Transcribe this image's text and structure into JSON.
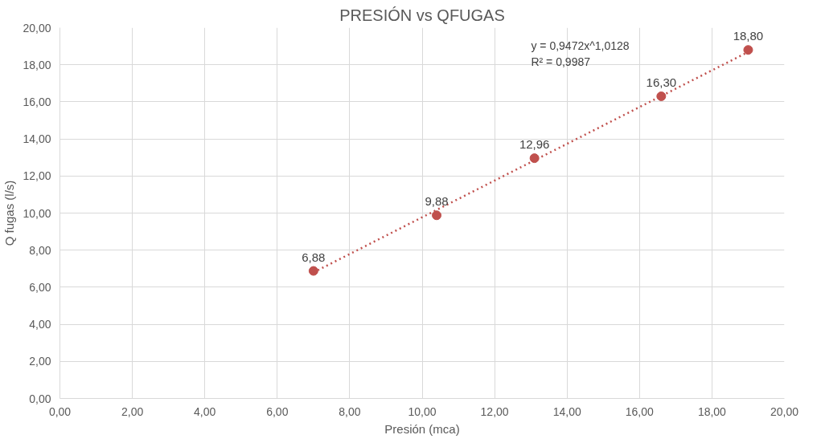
{
  "chart_data": {
    "type": "scatter",
    "title": "PRESIÓN vs QFUGAS",
    "xlabel": "Presión (mca)",
    "ylabel": "Q fugas (l/s)",
    "x": [
      7.0,
      10.4,
      13.1,
      16.6,
      19.0
    ],
    "series": [
      {
        "color": "#c0504d",
        "values": [
          6.88,
          9.88,
          12.96,
          16.3,
          18.8
        ],
        "data_labels": true,
        "value_labels": [
          "6,88",
          "9,88",
          "12,96",
          "16,30",
          "18,80"
        ]
      },
      {
        "type": "line",
        "color": "#c0504d",
        "x": [
          7.0,
          19.0
        ],
        "values": [
          6.8,
          18.69
        ],
        "line_style": "dotted",
        "marker": "none"
      }
    ],
    "annotations": [
      "y = 0,9472x^1,0128",
      "R² = 0,9987"
    ],
    "xlim": [
      0,
      20
    ],
    "ylim": [
      0,
      20
    ],
    "xticks": [
      {
        "value": 0,
        "label": "0,00"
      },
      {
        "value": 2,
        "label": "2,00"
      },
      {
        "value": 4,
        "label": "4,00"
      },
      {
        "value": 6,
        "label": "6,00"
      },
      {
        "value": 8,
        "label": "8,00"
      },
      {
        "value": 10,
        "label": "10,00"
      },
      {
        "value": 12,
        "label": "12,00"
      },
      {
        "value": 14,
        "label": "14,00"
      },
      {
        "value": 16,
        "label": "16,00"
      },
      {
        "value": 18,
        "label": "18,00"
      },
      {
        "value": 20,
        "label": "20,00"
      }
    ],
    "yticks": [
      {
        "value": 0,
        "label": "0,00"
      },
      {
        "value": 2,
        "label": "2,00"
      },
      {
        "value": 4,
        "label": "4,00"
      },
      {
        "value": 6,
        "label": "6,00"
      },
      {
        "value": 8,
        "label": "8,00"
      },
      {
        "value": 10,
        "label": "10,00"
      },
      {
        "value": 12,
        "label": "12,00"
      },
      {
        "value": 14,
        "label": "14,00"
      },
      {
        "value": 16,
        "label": "16,00"
      },
      {
        "value": 18,
        "label": "18,00"
      },
      {
        "value": 20,
        "label": "20,00"
      }
    ],
    "grid": true,
    "marker": "circle"
  }
}
